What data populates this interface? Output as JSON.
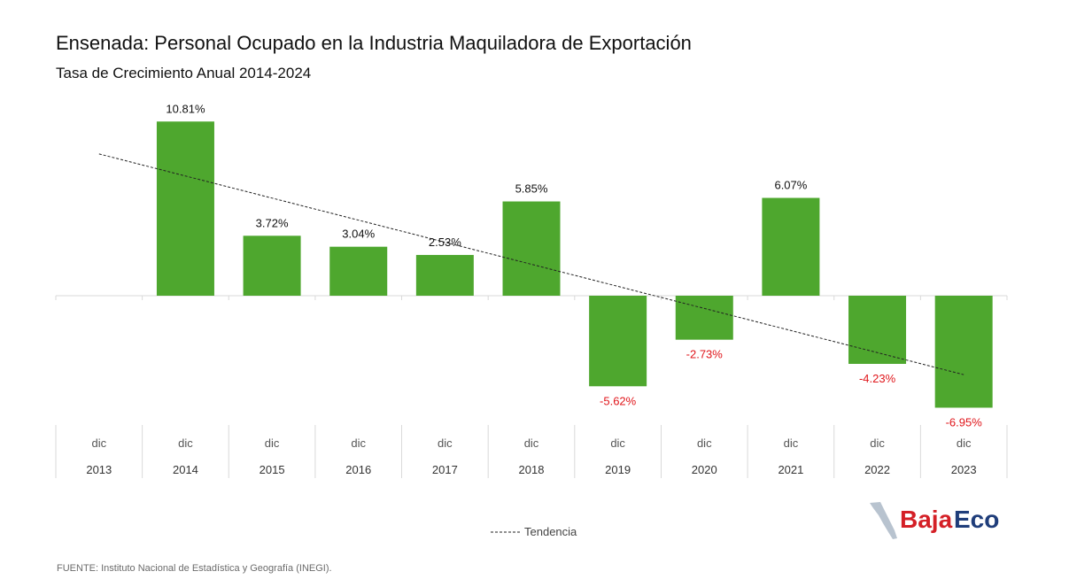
{
  "header": {
    "title": "Ensenada: Personal Ocupado en la Industria Maquiladora de Exportación",
    "subtitle": "Tasa de Crecimiento Anual 2014-2024"
  },
  "chart_data": {
    "type": "bar",
    "categories": [
      "2013",
      "2014",
      "2015",
      "2016",
      "2017",
      "2018",
      "2019",
      "2020",
      "2021",
      "2022",
      "2023"
    ],
    "month_label": "dic",
    "values": [
      null,
      10.81,
      3.72,
      3.04,
      2.53,
      5.85,
      -5.62,
      -2.73,
      6.07,
      -4.23,
      -6.95
    ],
    "value_labels": [
      "",
      "10.81%",
      "3.72%",
      "3.04%",
      "2.53%",
      "5.85%",
      "-5.62%",
      "-2.73%",
      "6.07%",
      "-4.23%",
      "-6.95%"
    ],
    "trend": {
      "name": "Tendencia",
      "start": 8.8,
      "end": -4.9
    },
    "legend_position": "bottom",
    "grid": false,
    "ylim": [
      -8.5,
      12
    ],
    "colors": {
      "bar": "#4ea72e",
      "negative_label": "#e0161b",
      "positive_label": "#111111",
      "trend": "#222222"
    }
  },
  "footer": {
    "source": "FUENTE: Instituto Nacional de Estadística y Geografía (INEGI)."
  },
  "logo": {
    "text_part1": "Baja",
    "text_part2": "Eco",
    "color_part1": "#d41f26",
    "color_part2": "#1f3d7a"
  }
}
